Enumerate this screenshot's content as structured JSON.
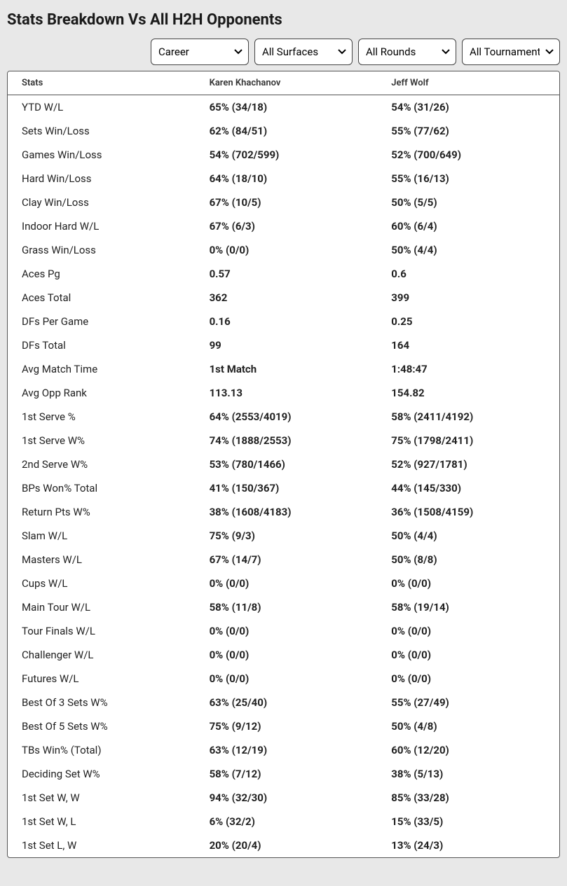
{
  "header": {
    "title": "Stats Breakdown Vs All H2H Opponents"
  },
  "filters": {
    "period": {
      "selected": "Career"
    },
    "surface": {
      "selected": "All Surfaces"
    },
    "round": {
      "selected": "All Rounds"
    },
    "tournament": {
      "selected": "All Tournaments"
    }
  },
  "table": {
    "columns": {
      "stats": "Stats",
      "player1": "Karen Khachanov",
      "player2": "Jeff Wolf"
    },
    "rows": [
      {
        "stat": "YTD W/L",
        "p1": "65% (34/18)",
        "p2": "54% (31/26)"
      },
      {
        "stat": "Sets Win/Loss",
        "p1": "62% (84/51)",
        "p2": "55% (77/62)"
      },
      {
        "stat": "Games Win/Loss",
        "p1": "54% (702/599)",
        "p2": "52% (700/649)"
      },
      {
        "stat": "Hard Win/Loss",
        "p1": "64% (18/10)",
        "p2": "55% (16/13)"
      },
      {
        "stat": "Clay Win/Loss",
        "p1": "67% (10/5)",
        "p2": "50% (5/5)"
      },
      {
        "stat": "Indoor Hard W/L",
        "p1": "67% (6/3)",
        "p2": "60% (6/4)"
      },
      {
        "stat": "Grass Win/Loss",
        "p1": "0% (0/0)",
        "p2": "50% (4/4)"
      },
      {
        "stat": "Aces Pg",
        "p1": "0.57",
        "p2": "0.6"
      },
      {
        "stat": "Aces Total",
        "p1": "362",
        "p2": "399"
      },
      {
        "stat": "DFs Per Game",
        "p1": "0.16",
        "p2": "0.25"
      },
      {
        "stat": "DFs Total",
        "p1": "99",
        "p2": "164"
      },
      {
        "stat": "Avg Match Time",
        "p1": "1st Match",
        "p2": "1:48:47"
      },
      {
        "stat": "Avg Opp Rank",
        "p1": "113.13",
        "p2": "154.82"
      },
      {
        "stat": "1st Serve %",
        "p1": "64% (2553/4019)",
        "p2": "58% (2411/4192)"
      },
      {
        "stat": "1st Serve W%",
        "p1": "74% (1888/2553)",
        "p2": "75% (1798/2411)"
      },
      {
        "stat": "2nd Serve W%",
        "p1": "53% (780/1466)",
        "p2": "52% (927/1781)"
      },
      {
        "stat": "BPs Won% Total",
        "p1": "41% (150/367)",
        "p2": "44% (145/330)"
      },
      {
        "stat": "Return Pts W%",
        "p1": "38% (1608/4183)",
        "p2": "36% (1508/4159)"
      },
      {
        "stat": "Slam W/L",
        "p1": "75% (9/3)",
        "p2": "50% (4/4)"
      },
      {
        "stat": "Masters W/L",
        "p1": "67% (14/7)",
        "p2": "50% (8/8)"
      },
      {
        "stat": "Cups W/L",
        "p1": "0% (0/0)",
        "p2": "0% (0/0)"
      },
      {
        "stat": "Main Tour W/L",
        "p1": "58% (11/8)",
        "p2": "58% (19/14)"
      },
      {
        "stat": "Tour Finals W/L",
        "p1": "0% (0/0)",
        "p2": "0% (0/0)"
      },
      {
        "stat": "Challenger W/L",
        "p1": "0% (0/0)",
        "p2": "0% (0/0)"
      },
      {
        "stat": "Futures W/L",
        "p1": "0% (0/0)",
        "p2": "0% (0/0)"
      },
      {
        "stat": "Best Of 3 Sets W%",
        "p1": "63% (25/40)",
        "p2": "55% (27/49)"
      },
      {
        "stat": "Best Of 5 Sets W%",
        "p1": "75% (9/12)",
        "p2": "50% (4/8)"
      },
      {
        "stat": "TBs Win% (Total)",
        "p1": "63% (12/19)",
        "p2": "60% (12/20)"
      },
      {
        "stat": "Deciding Set W%",
        "p1": "58% (7/12)",
        "p2": "38% (5/13)"
      },
      {
        "stat": "1st Set W, W",
        "p1": "94% (32/30)",
        "p2": "85% (33/28)"
      },
      {
        "stat": "1st Set W, L",
        "p1": "6% (32/2)",
        "p2": "15% (33/5)"
      },
      {
        "stat": "1st Set L, W",
        "p1": "20% (20/4)",
        "p2": "13% (24/3)"
      }
    ]
  }
}
